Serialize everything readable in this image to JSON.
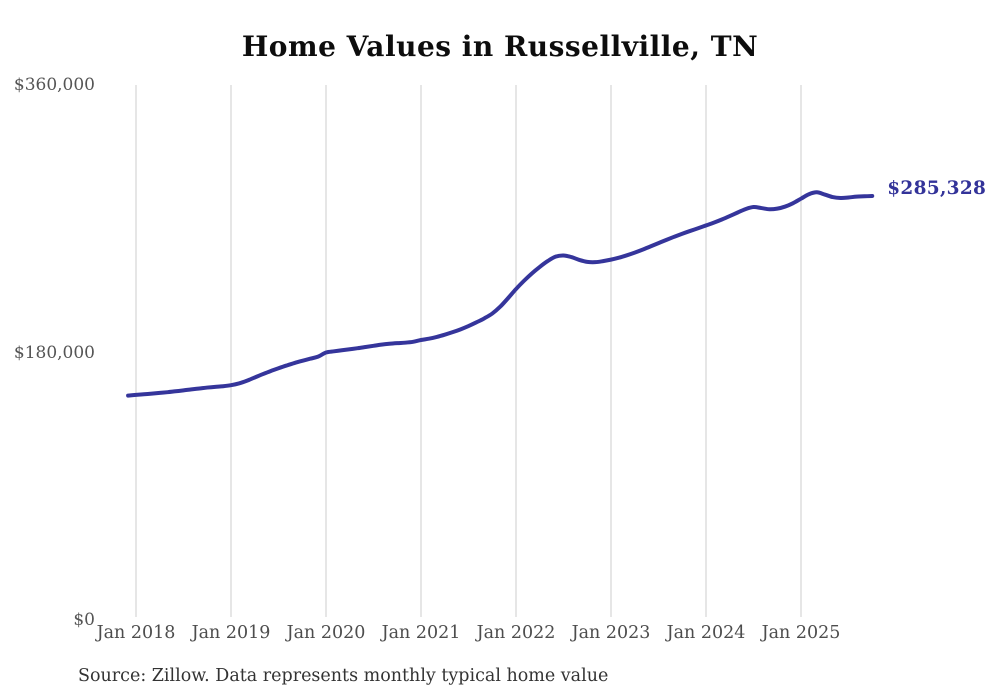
{
  "title": "Home Values in Russellville, TN",
  "source_note": "Source: Zillow. Data represents monthly typical home value",
  "colors": {
    "line": "#35359b",
    "grid": "#cccccc",
    "axis_text": "#555555",
    "title_text": "#0d0d0d",
    "end_label_text": "#333399",
    "background": "#ffffff"
  },
  "chart_data": {
    "type": "line",
    "title": "Home Values in Russellville, TN",
    "xlabel": "",
    "ylabel": "",
    "ylim": [
      0,
      360000
    ],
    "y_ticks": [
      {
        "value": 0,
        "label": "$0"
      },
      {
        "value": 180000,
        "label": "$180,000"
      },
      {
        "value": 360000,
        "label": "$360,000"
      }
    ],
    "x_ticks": [
      {
        "year": 2018,
        "label": "Jan 2018"
      },
      {
        "year": 2019,
        "label": "Jan 2019"
      },
      {
        "year": 2020,
        "label": "Jan 2020"
      },
      {
        "year": 2021,
        "label": "Jan 2021"
      },
      {
        "year": 2022,
        "label": "Jan 2022"
      },
      {
        "year": 2023,
        "label": "Jan 2023"
      },
      {
        "year": 2024,
        "label": "Jan 2024"
      },
      {
        "year": 2025,
        "label": "Jan 2025"
      }
    ],
    "grid": "vertical-only",
    "legend": "none",
    "end_label": "$285,328",
    "end_value": 285328,
    "series": [
      {
        "name": "Monthly typical home value",
        "months": [
          "2017-12",
          "2018-01",
          "2018-02",
          "2018-03",
          "2018-04",
          "2018-05",
          "2018-06",
          "2018-07",
          "2018-08",
          "2018-09",
          "2018-10",
          "2018-11",
          "2018-12",
          "2019-01",
          "2019-02",
          "2019-03",
          "2019-04",
          "2019-05",
          "2019-06",
          "2019-07",
          "2019-08",
          "2019-09",
          "2019-10",
          "2019-11",
          "2019-12",
          "2020-01",
          "2020-02",
          "2020-03",
          "2020-04",
          "2020-05",
          "2020-06",
          "2020-07",
          "2020-08",
          "2020-09",
          "2020-10",
          "2020-11",
          "2020-12",
          "2021-01",
          "2021-02",
          "2021-03",
          "2021-04",
          "2021-05",
          "2021-06",
          "2021-07",
          "2021-08",
          "2021-09",
          "2021-10",
          "2021-11",
          "2021-12",
          "2022-01",
          "2022-02",
          "2022-03",
          "2022-04",
          "2022-05",
          "2022-06",
          "2022-07",
          "2022-08",
          "2022-09",
          "2022-10",
          "2022-11",
          "2022-12",
          "2023-01",
          "2023-02",
          "2023-03",
          "2023-04",
          "2023-05",
          "2023-06",
          "2023-07",
          "2023-08",
          "2023-09",
          "2023-10",
          "2023-11",
          "2023-12",
          "2024-01",
          "2024-02",
          "2024-03",
          "2024-04",
          "2024-05",
          "2024-06",
          "2024-07",
          "2024-08",
          "2024-09",
          "2024-10",
          "2024-11",
          "2024-12",
          "2025-01",
          "2025-02",
          "2025-03",
          "2025-04",
          "2025-05",
          "2025-06",
          "2025-07",
          "2025-08",
          "2025-09",
          "2025-10"
        ],
        "values": [
          151000,
          151500,
          151900,
          152300,
          152800,
          153300,
          153900,
          154500,
          155200,
          155800,
          156400,
          156900,
          157300,
          158000,
          159200,
          161000,
          163200,
          165400,
          167500,
          169400,
          171200,
          172900,
          174400,
          175800,
          177200,
          180000,
          180800,
          181500,
          182200,
          182900,
          183700,
          184500,
          185300,
          185900,
          186300,
          186600,
          187200,
          188400,
          189300,
          190500,
          192000,
          193700,
          195600,
          197800,
          200300,
          203000,
          206200,
          210800,
          216600,
          222700,
          228200,
          233200,
          237600,
          241500,
          244500,
          245300,
          244200,
          242300,
          241000,
          240800,
          241500,
          242500,
          243800,
          245400,
          247200,
          249200,
          251400,
          253600,
          255800,
          257900,
          259900,
          261800,
          263600,
          265500,
          267400,
          269500,
          271800,
          274200,
          276500,
          277900,
          277200,
          276400,
          276800,
          278200,
          280500,
          283500,
          286500,
          287800,
          286300,
          284600,
          284000,
          284300,
          284900,
          285100,
          285328
        ]
      }
    ]
  }
}
